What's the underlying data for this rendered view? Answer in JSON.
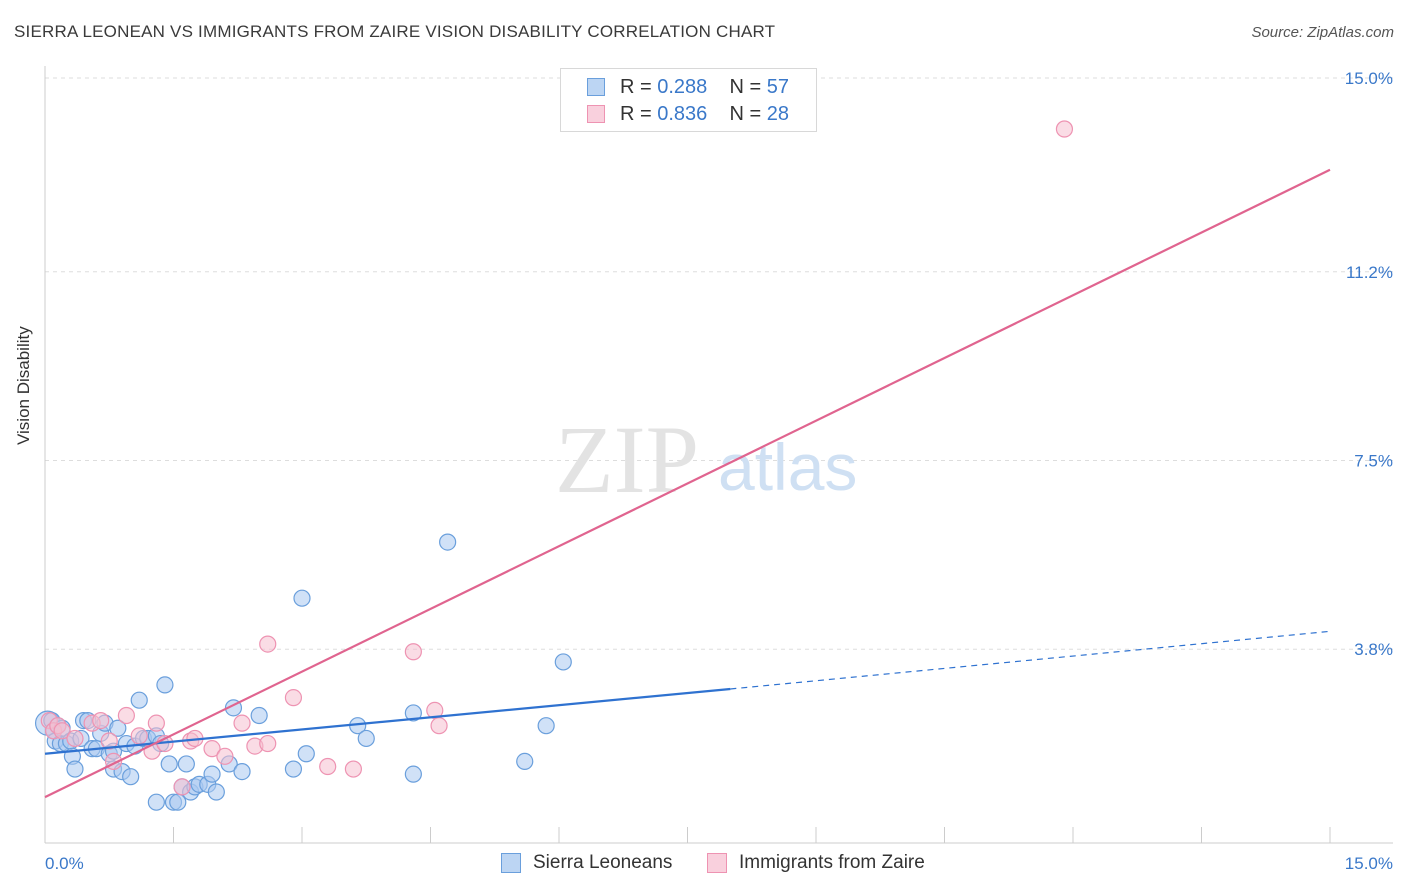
{
  "header": {
    "title": "SIERRA LEONEAN VS IMMIGRANTS FROM ZAIRE VISION DISABILITY CORRELATION CHART",
    "source": "Source: ZipAtlas.com"
  },
  "legend": {
    "series1": {
      "r_label": "R = ",
      "r_value": "0.288",
      "n_label": "N = ",
      "n_value": "57"
    },
    "series2": {
      "r_label": "R = ",
      "r_value": "0.836",
      "n_label": "N = ",
      "n_value": "28"
    }
  },
  "bottom_legend": {
    "series1": "Sierra Leoneans",
    "series2": "Immigrants from Zaire"
  },
  "watermark": {
    "zip": "ZIP",
    "atlas": "atlas"
  },
  "colors": {
    "blue_fill": "#a9c9f0",
    "blue_stroke": "#6a9fdc",
    "blue_line": "#2f72d0",
    "pink_fill": "#f6bfd0",
    "pink_stroke": "#ee93b2",
    "pink_line": "#e0648f",
    "axis_text": "#3a78c9",
    "grid": "#dddddd"
  },
  "chart_data": {
    "type": "scatter",
    "title": "SIERRA LEONEAN VS IMMIGRANTS FROM ZAIRE VISION DISABILITY CORRELATION CHART",
    "xlabel": "",
    "ylabel": "Vision Disability",
    "xlim": [
      0,
      15
    ],
    "ylim": [
      0,
      15
    ],
    "x_tick_labels": [
      "0.0%",
      "15.0%"
    ],
    "y_ticks": [
      3.8,
      7.5,
      11.2,
      15.0
    ],
    "y_tick_labels": [
      "3.8%",
      "7.5%",
      "11.2%",
      "15.0%"
    ],
    "series": [
      {
        "name": "Sierra Leoneans",
        "r": 0.288,
        "n": 57,
        "trend": {
          "x0": 0,
          "y0": 1.75,
          "x1": 8,
          "y1": 3.02,
          "dashed_to_x": 15,
          "dashed_to_y": 4.15
        },
        "points": [
          [
            0.03,
            2.35
          ],
          [
            0.08,
            2.4
          ],
          [
            0.1,
            2.2
          ],
          [
            0.12,
            2.0
          ],
          [
            0.15,
            2.3
          ],
          [
            0.18,
            1.95
          ],
          [
            0.2,
            2.25
          ],
          [
            0.25,
            1.95
          ],
          [
            0.3,
            2.0
          ],
          [
            0.32,
            1.7
          ],
          [
            0.35,
            1.45
          ],
          [
            0.42,
            2.05
          ],
          [
            0.45,
            2.4
          ],
          [
            0.5,
            2.4
          ],
          [
            0.55,
            1.85
          ],
          [
            0.6,
            1.85
          ],
          [
            0.65,
            2.15
          ],
          [
            0.7,
            2.35
          ],
          [
            0.75,
            1.75
          ],
          [
            0.8,
            1.8
          ],
          [
            0.85,
            2.25
          ],
          [
            0.8,
            1.45
          ],
          [
            0.9,
            1.4
          ],
          [
            0.95,
            1.95
          ],
          [
            1.0,
            1.3
          ],
          [
            1.05,
            1.9
          ],
          [
            1.1,
            2.8
          ],
          [
            1.15,
            2.05
          ],
          [
            1.2,
            2.05
          ],
          [
            1.3,
            0.8
          ],
          [
            1.3,
            2.1
          ],
          [
            1.35,
            1.95
          ],
          [
            1.4,
            3.1
          ],
          [
            1.45,
            1.55
          ],
          [
            1.5,
            0.8
          ],
          [
            1.55,
            0.8
          ],
          [
            1.6,
            1.1
          ],
          [
            1.65,
            1.55
          ],
          [
            1.7,
            1.0
          ],
          [
            1.75,
            1.1
          ],
          [
            1.8,
            1.15
          ],
          [
            1.9,
            1.15
          ],
          [
            1.95,
            1.35
          ],
          [
            2.0,
            1.0
          ],
          [
            2.15,
            1.55
          ],
          [
            2.2,
            2.65
          ],
          [
            2.3,
            1.4
          ],
          [
            2.5,
            2.5
          ],
          [
            2.9,
            1.45
          ],
          [
            3.0,
            4.8
          ],
          [
            3.05,
            1.75
          ],
          [
            3.65,
            2.3
          ],
          [
            3.75,
            2.05
          ],
          [
            4.3,
            1.35
          ],
          [
            4.7,
            5.9
          ],
          [
            5.6,
            1.6
          ],
          [
            5.85,
            2.3
          ],
          [
            6.05,
            3.55
          ],
          [
            4.3,
            2.55
          ]
        ]
      },
      {
        "name": "Immigrants from Zaire",
        "r": 0.836,
        "n": 28,
        "trend": {
          "x0": 0,
          "y0": 0.9,
          "x1": 15,
          "y1": 13.2
        },
        "points": [
          [
            0.05,
            2.4
          ],
          [
            0.1,
            2.2
          ],
          [
            0.15,
            2.3
          ],
          [
            0.2,
            2.2
          ],
          [
            0.35,
            2.05
          ],
          [
            0.55,
            2.35
          ],
          [
            0.65,
            2.4
          ],
          [
            0.75,
            2.0
          ],
          [
            0.8,
            1.6
          ],
          [
            0.95,
            2.5
          ],
          [
            1.1,
            2.1
          ],
          [
            1.25,
            1.8
          ],
          [
            1.3,
            2.35
          ],
          [
            1.4,
            1.95
          ],
          [
            1.6,
            1.1
          ],
          [
            1.7,
            2.0
          ],
          [
            1.75,
            2.05
          ],
          [
            1.95,
            1.85
          ],
          [
            2.1,
            1.7
          ],
          [
            2.3,
            2.35
          ],
          [
            2.45,
            1.9
          ],
          [
            2.6,
            1.95
          ],
          [
            2.6,
            3.9
          ],
          [
            2.9,
            2.85
          ],
          [
            3.3,
            1.5
          ],
          [
            3.6,
            1.45
          ],
          [
            4.3,
            3.75
          ],
          [
            4.55,
            2.6
          ],
          [
            4.6,
            2.3
          ],
          [
            11.9,
            14.0
          ]
        ]
      }
    ]
  }
}
